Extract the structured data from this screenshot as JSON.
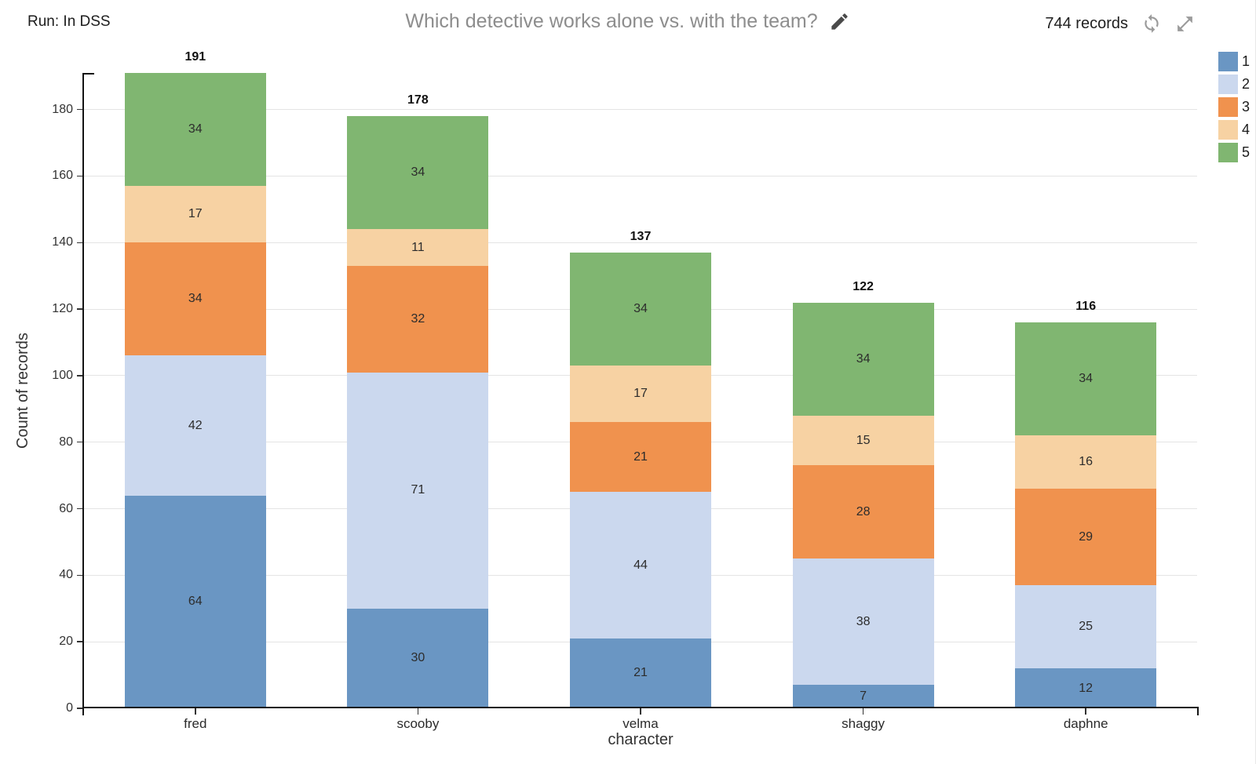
{
  "header": {
    "run_label": "Run: In DSS",
    "title": "Which detective works alone vs. with the team?",
    "records_label": "744 records"
  },
  "icons": {
    "edit": "pencil-icon",
    "refresh": "refresh-icon",
    "expand": "expand-icon"
  },
  "chart_data": {
    "type": "bar",
    "stacked": true,
    "title": "Which detective works alone vs. with the team?",
    "xlabel": "character",
    "ylabel": "Count of records",
    "categories": [
      "fred",
      "scooby",
      "velma",
      "shaggy",
      "daphne"
    ],
    "series": [
      {
        "name": "1",
        "color": "#6a96c3",
        "values": [
          64,
          30,
          21,
          7,
          12
        ]
      },
      {
        "name": "2",
        "color": "#cbd8ee",
        "values": [
          42,
          71,
          44,
          38,
          25
        ]
      },
      {
        "name": "3",
        "color": "#f0924e",
        "values": [
          34,
          32,
          21,
          28,
          29
        ]
      },
      {
        "name": "4",
        "color": "#f7d2a3",
        "values": [
          17,
          11,
          17,
          15,
          16
        ]
      },
      {
        "name": "5",
        "color": "#80b671",
        "values": [
          34,
          34,
          34,
          34,
          34
        ]
      }
    ],
    "totals": [
      191,
      178,
      137,
      122,
      116
    ],
    "y_ticks": [
      0,
      20,
      40,
      60,
      80,
      100,
      120,
      140,
      160,
      180
    ],
    "ylim": [
      0,
      191
    ],
    "grid": true,
    "legend_position": "top-right",
    "legend_entries": [
      "1",
      "2",
      "3",
      "4",
      "5"
    ]
  }
}
